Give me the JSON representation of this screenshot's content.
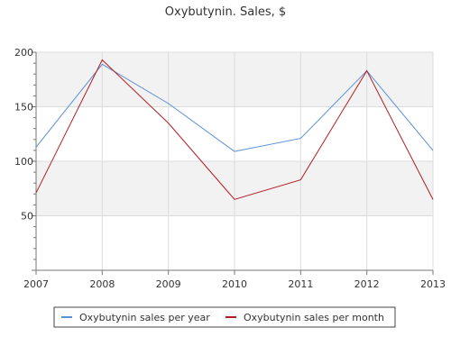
{
  "chart_data": {
    "type": "line",
    "title": "Oxybutynin. Sales, $",
    "xlabel": "",
    "ylabel": "",
    "x": [
      "2007",
      "2008",
      "2009",
      "2010",
      "2011",
      "2012",
      "2013"
    ],
    "ylim": [
      0,
      200
    ],
    "yticks": [
      50,
      100,
      150,
      200
    ],
    "grid": true,
    "legend_position": "bottom",
    "series": [
      {
        "name": "Oxybutynin sales per year",
        "color": "#5b8fd6",
        "values": [
          113,
          189,
          153,
          109,
          121,
          183,
          110
        ]
      },
      {
        "name": "Oxybutynin sales per month",
        "color": "#b21f24",
        "values": [
          71,
          193,
          135,
          65,
          83,
          183,
          65
        ]
      }
    ]
  },
  "colors": {
    "band": "#f2f2f2",
    "grid": "#dcdcdc",
    "axis": "#777777",
    "text": "#333333"
  }
}
